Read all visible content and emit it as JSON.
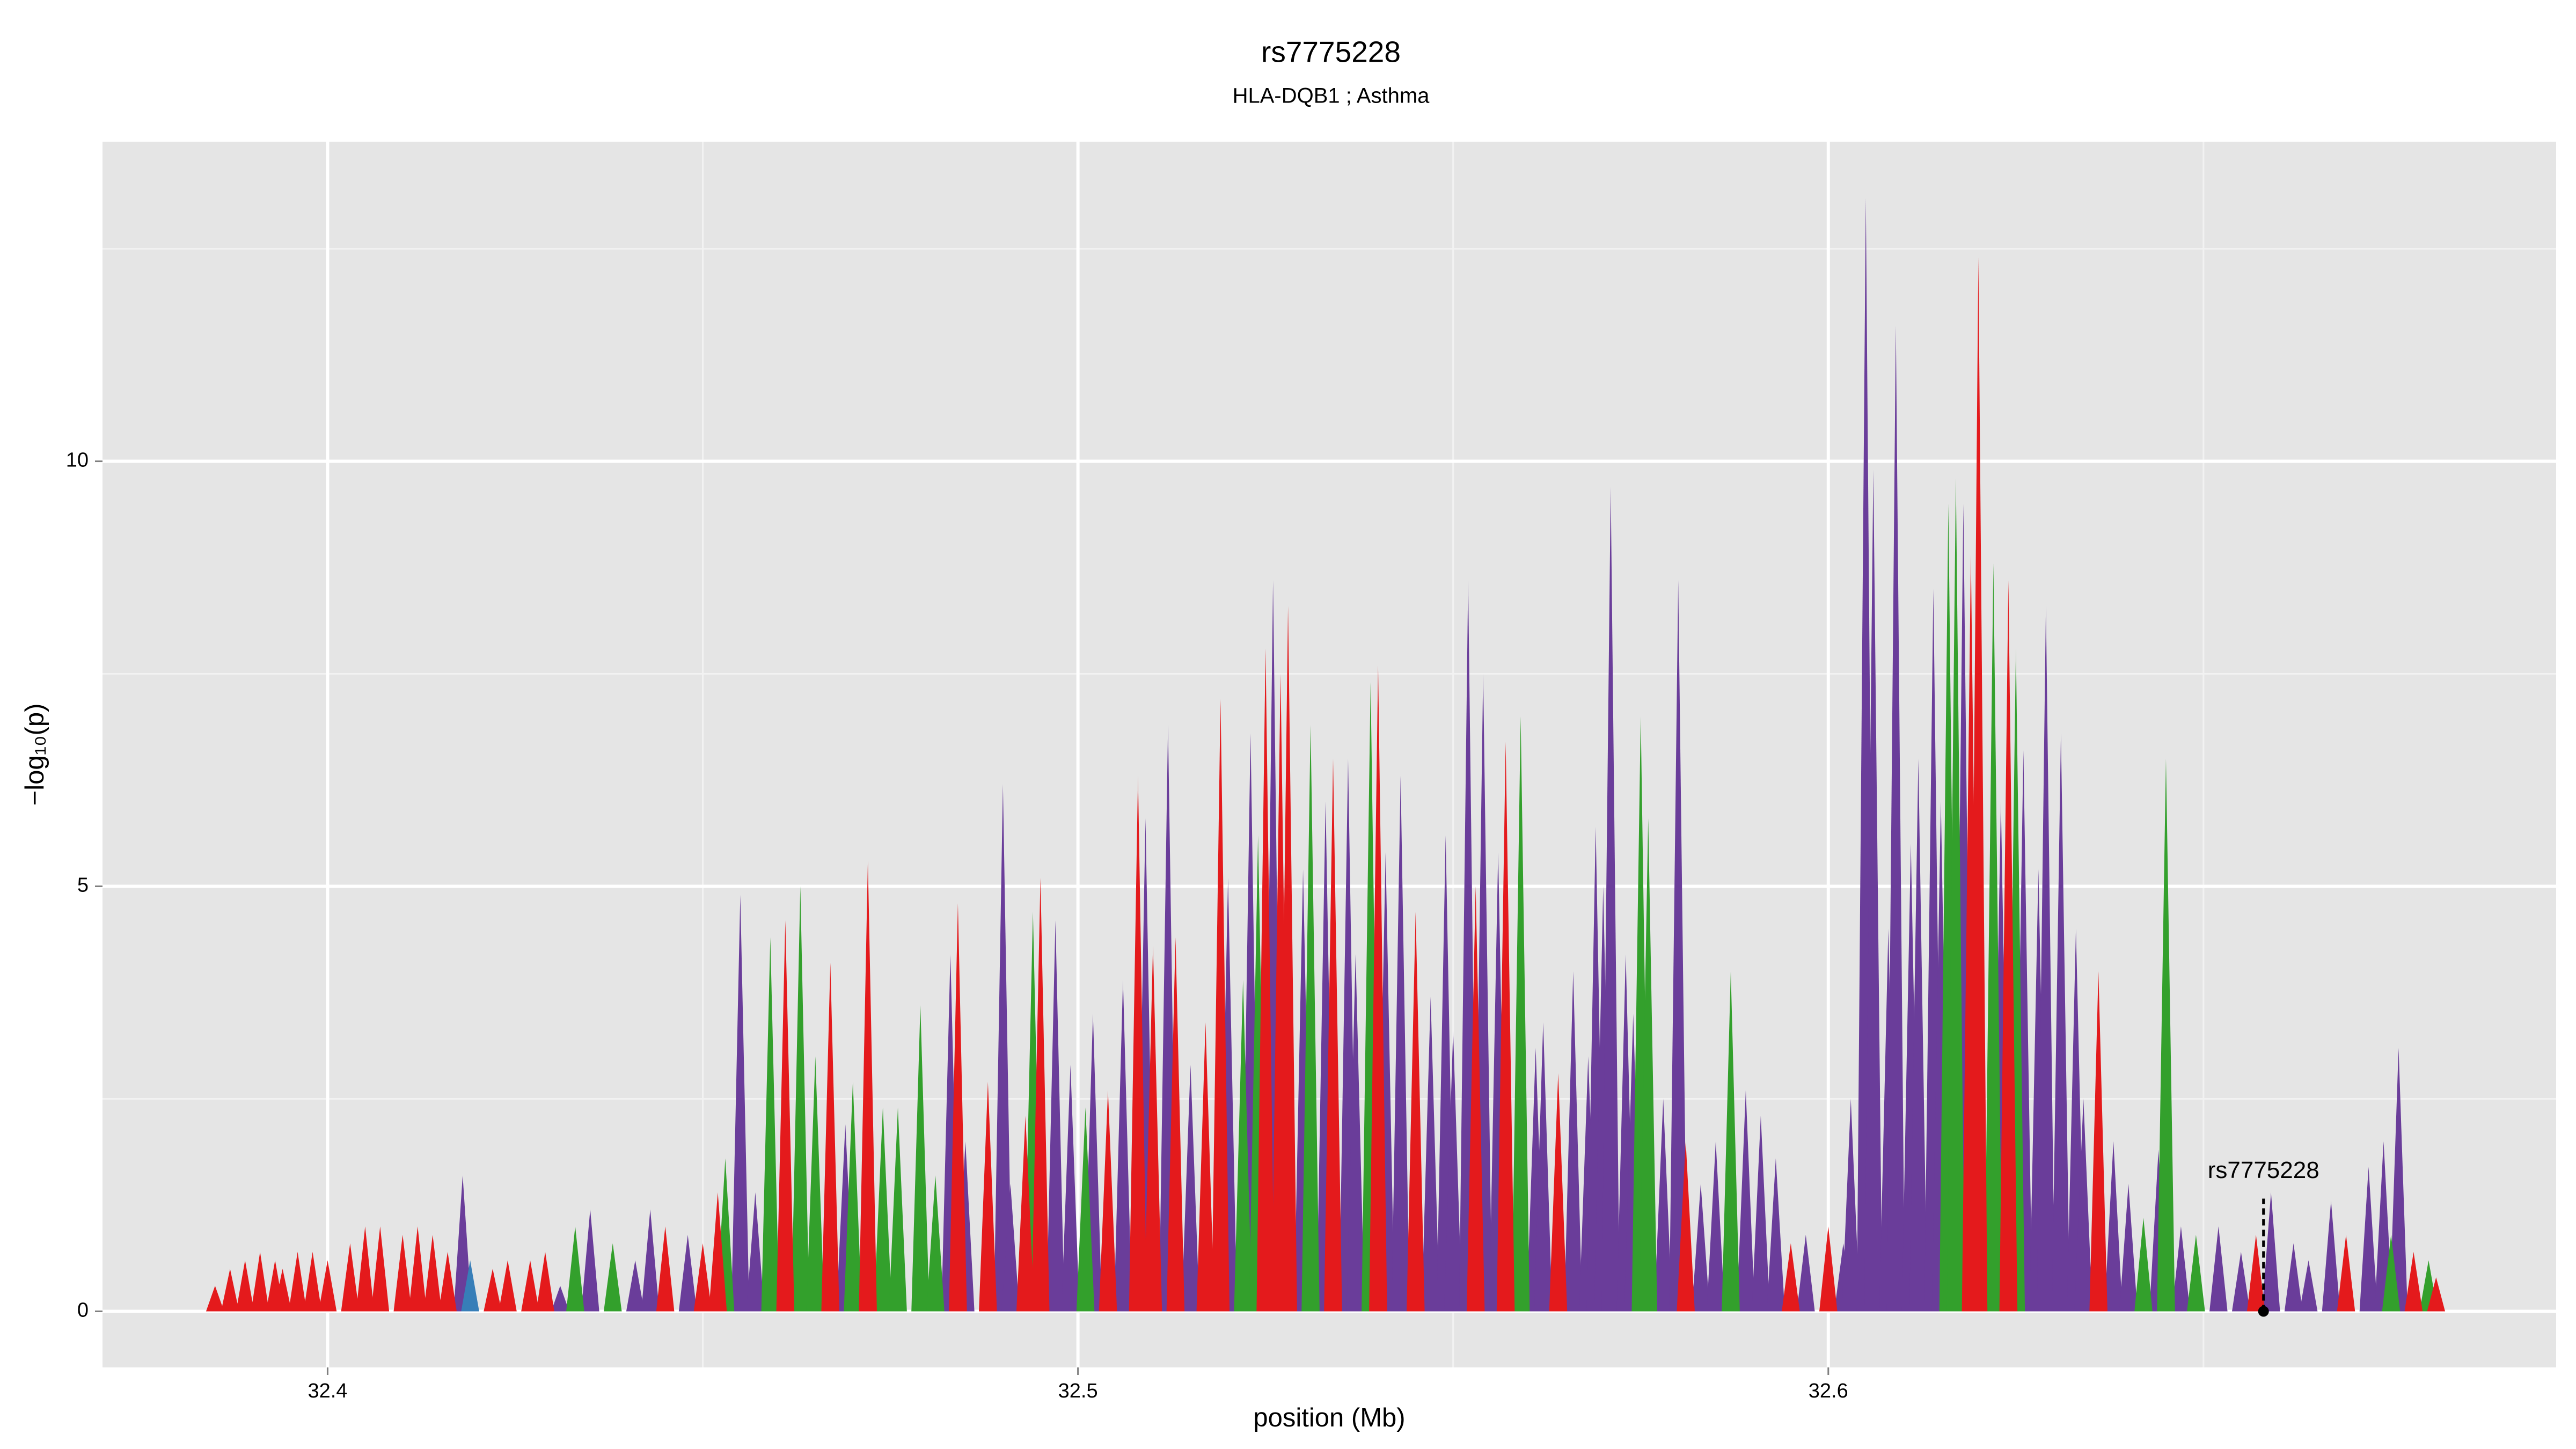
{
  "chart_data": {
    "type": "spike",
    "title": "rs7775228",
    "subtitle": "HLA-DQB1 ; Asthma",
    "xlabel": "position (Mb)",
    "ylabel": "−log₁₀(p)",
    "xlim": [
      32.37,
      32.697
    ],
    "ylim": [
      -0.66,
      13.76
    ],
    "xticks": [
      32.4,
      32.5,
      32.6
    ],
    "yticks": [
      0,
      5,
      10
    ],
    "xminor": [
      32.45,
      32.55,
      32.65
    ],
    "yminor": [
      2.5,
      7.5,
      12.5
    ],
    "grid": true,
    "series": [
      {
        "color": "#6a3d9a",
        "x": [
          32.418,
          32.431,
          32.435,
          32.441,
          32.443,
          32.448,
          32.455,
          32.457,
          32.469,
          32.483,
          32.485,
          32.49,
          32.491,
          32.497,
          32.499,
          32.502,
          32.506,
          32.509,
          32.512,
          32.515,
          32.52,
          32.523,
          32.526,
          32.53,
          32.533,
          32.536,
          32.537,
          32.541,
          32.543,
          32.547,
          32.549,
          32.55,
          32.552,
          32.554,
          32.556,
          32.561,
          32.562,
          32.566,
          32.568,
          32.569,
          32.57,
          32.571,
          32.573,
          32.574,
          32.578,
          32.58,
          32.583,
          32.585,
          32.589,
          32.591,
          32.593,
          32.597,
          32.602,
          32.603,
          32.605,
          32.606,
          32.608,
          32.609,
          32.611,
          32.612,
          32.614,
          32.615,
          32.618,
          32.623,
          32.626,
          32.628,
          32.629,
          32.631,
          32.633,
          32.634,
          32.638,
          32.64,
          32.644,
          32.647,
          32.652,
          32.655,
          32.659,
          32.662,
          32.664,
          32.667,
          32.672,
          32.674,
          32.676
        ],
        "values": [
          1.6,
          0.3,
          1.2,
          0.6,
          1.2,
          0.9,
          4.9,
          1.4,
          2.2,
          4.2,
          2.0,
          6.2,
          1.5,
          4.6,
          2.9,
          3.5,
          3.9,
          5.8,
          6.9,
          2.9,
          5.1,
          6.8,
          8.6,
          5.2,
          6.0,
          6.5,
          4.2,
          5.4,
          6.3,
          3.7,
          5.6,
          3.3,
          8.6,
          7.5,
          5.4,
          3.1,
          3.4,
          4.0,
          3.0,
          5.7,
          5.0,
          9.7,
          4.2,
          3.5,
          2.5,
          8.6,
          1.5,
          2.0,
          2.6,
          2.3,
          1.8,
          0.9,
          0.8,
          2.5,
          13.1,
          9.9,
          4.5,
          11.6,
          5.5,
          6.5,
          8.5,
          6.0,
          9.5,
          6.0,
          6.6,
          5.2,
          8.3,
          6.8,
          4.5,
          2.5,
          2.0,
          1.5,
          1.9,
          1.0,
          1.0,
          0.7,
          1.4,
          0.8,
          0.6,
          1.3,
          1.7,
          2.0,
          3.1
        ]
      },
      {
        "color": "#33a02c",
        "x": [
          32.433,
          32.438,
          32.453,
          32.459,
          32.463,
          32.465,
          32.47,
          32.474,
          32.476,
          32.479,
          32.481,
          32.494,
          32.501,
          32.522,
          32.524,
          32.531,
          32.539,
          32.559,
          32.575,
          32.576,
          32.587,
          32.616,
          32.617,
          32.622,
          32.625,
          32.642,
          32.645,
          32.649,
          32.675,
          32.68
        ],
        "values": [
          1.0,
          0.8,
          1.8,
          4.4,
          5.0,
          3.0,
          2.7,
          2.4,
          2.4,
          3.6,
          1.6,
          4.7,
          2.4,
          3.9,
          5.6,
          6.9,
          7.4,
          7.0,
          7.0,
          5.8,
          4.0,
          9.5,
          9.8,
          8.8,
          7.8,
          1.1,
          6.5,
          0.9,
          0.9,
          0.6
        ]
      },
      {
        "color": "#e41a1c",
        "x": [
          32.385,
          32.387,
          32.389,
          32.391,
          32.393,
          32.394,
          32.396,
          32.398,
          32.4,
          32.403,
          32.405,
          32.407,
          32.41,
          32.412,
          32.414,
          32.416,
          32.422,
          32.424,
          32.427,
          32.429,
          32.445,
          32.45,
          32.452,
          32.461,
          32.467,
          32.472,
          32.484,
          32.488,
          32.493,
          32.495,
          32.504,
          32.508,
          32.51,
          32.513,
          32.517,
          32.519,
          32.525,
          32.527,
          32.528,
          32.534,
          32.54,
          32.545,
          32.553,
          32.557,
          32.564,
          32.581,
          32.595,
          32.6,
          32.619,
          32.62,
          32.624,
          32.636,
          32.657,
          32.669,
          32.678,
          32.681
        ],
        "values": [
          0.3,
          0.5,
          0.6,
          0.7,
          0.6,
          0.5,
          0.7,
          0.7,
          0.6,
          0.8,
          1.0,
          1.0,
          0.9,
          1.0,
          0.9,
          0.7,
          0.5,
          0.6,
          0.6,
          0.7,
          1.0,
          0.8,
          1.4,
          4.6,
          4.1,
          5.3,
          4.8,
          2.7,
          2.3,
          5.1,
          2.6,
          6.3,
          4.3,
          4.4,
          3.4,
          7.2,
          7.8,
          7.5,
          8.3,
          6.5,
          7.6,
          4.7,
          5.0,
          6.7,
          2.8,
          2.0,
          0.8,
          1.0,
          8.9,
          12.4,
          8.6,
          4.0,
          0.9,
          0.9,
          0.7,
          0.4
        ]
      },
      {
        "color": "#377eb8",
        "x": [
          32.419
        ],
        "values": [
          0.6
        ]
      }
    ],
    "annotation": {
      "label": "rs7775228",
      "x": 32.658,
      "y": 0
    }
  }
}
